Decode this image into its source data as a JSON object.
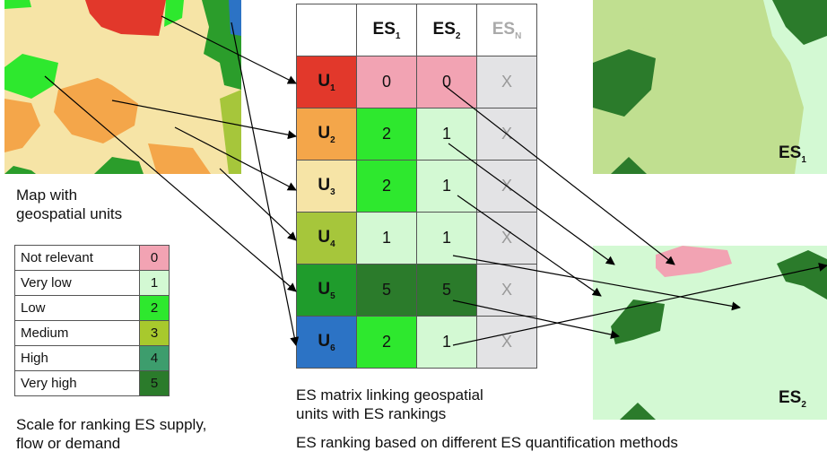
{
  "matrix": {
    "header": {
      "es1": "ES",
      "es1_sub": "1",
      "es2": "ES",
      "es2_sub": "2",
      "esn": "ES",
      "esn_sub": "N"
    },
    "units": [
      {
        "label": "U",
        "sub": "1",
        "color": "#e2382b",
        "es1": "0",
        "es1_color": "#f2a3b3",
        "es2": "0",
        "es2_color": "#f2a3b3",
        "esn": "X"
      },
      {
        "label": "U",
        "sub": "2",
        "color": "#f4a64a",
        "es1": "2",
        "es1_color": "#2ee82e",
        "es2": "1",
        "es2_color": "#d3f9d3",
        "esn": "X"
      },
      {
        "label": "U",
        "sub": "3",
        "color": "#f6e4a6",
        "es1": "2",
        "es1_color": "#2ee82e",
        "es2": "1",
        "es2_color": "#d3f9d3",
        "esn": "X"
      },
      {
        "label": "U",
        "sub": "4",
        "color": "#a6c63b",
        "es1": "1",
        "es1_color": "#d3f9d3",
        "es2": "1",
        "es2_color": "#d3f9d3",
        "esn": "X"
      },
      {
        "label": "U",
        "sub": "5",
        "color": "#1f9c2c",
        "es1": "5",
        "es1_color": "#2b7b2b",
        "es2": "5",
        "es2_color": "#2b7b2b",
        "esn": "X"
      },
      {
        "label": "U",
        "sub": "6",
        "color": "#2c73c5",
        "es1": "2",
        "es1_color": "#2ee82e",
        "es2": "1",
        "es2_color": "#d3f9d3",
        "esn": "X"
      }
    ],
    "caption": [
      "ES matrix linking geospatial",
      "units with ES rankings"
    ]
  },
  "map_caption": [
    "Map with",
    "geospatial units"
  ],
  "scale": {
    "rows": [
      {
        "label": "Not relevant",
        "value": "0",
        "color": "#f2a3b3"
      },
      {
        "label": "Very low",
        "value": "1",
        "color": "#d3f9d3"
      },
      {
        "label": "Low",
        "value": "2",
        "color": "#2ee82e"
      },
      {
        "label": "Medium",
        "value": "3",
        "color": "#a8c92d"
      },
      {
        "label": "High",
        "value": "4",
        "color": "#3d9d6d"
      },
      {
        "label": "Very high",
        "value": "5",
        "color": "#2b7b2b"
      }
    ],
    "caption": [
      "Scale for ranking ES supply,",
      "flow or demand"
    ]
  },
  "es1_map": {
    "label": "ES",
    "sub": "1"
  },
  "es2_map": {
    "label": "ES",
    "sub": "2"
  },
  "bottom_caption": "ES ranking based on different ES quantification methods"
}
